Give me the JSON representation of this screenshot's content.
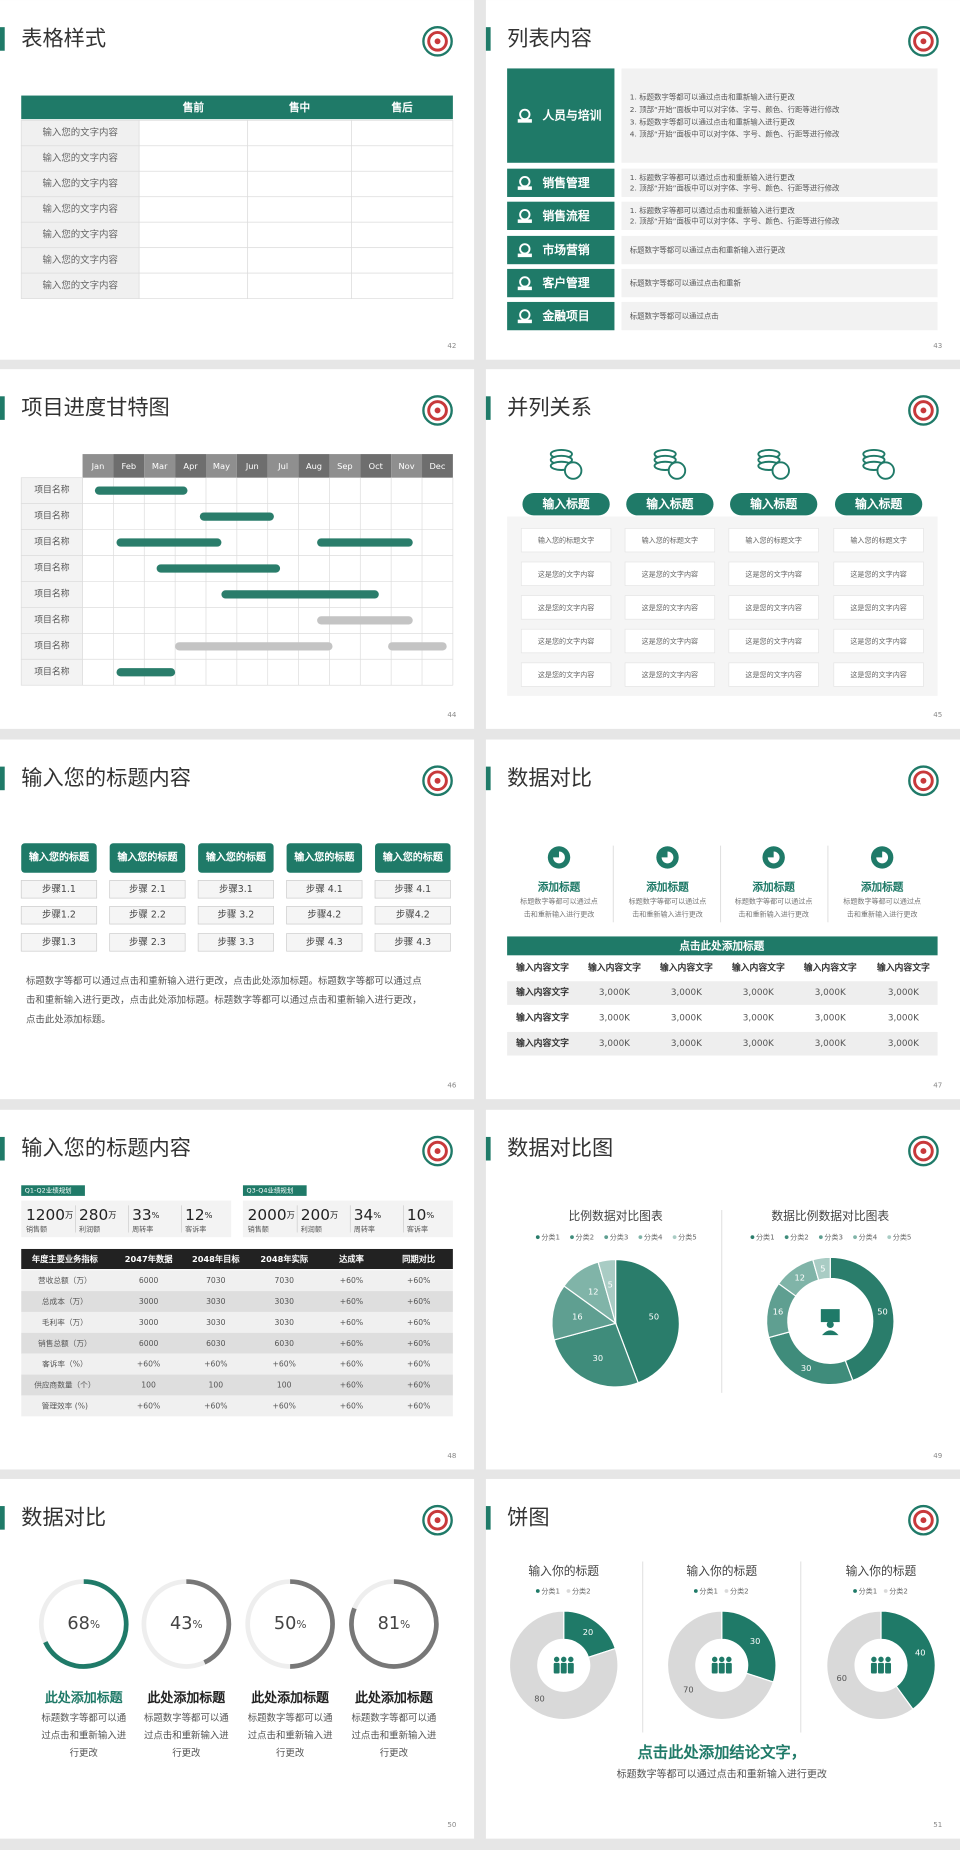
{
  "slides": [
    {
      "page": 42,
      "title": "表格样式",
      "table": {
        "headers": [
          "售前",
          "售中",
          "售后"
        ],
        "rows": [
          "输入您的文字内容",
          "输入您的文字内容",
          "输入您的文字内容",
          "输入您的文字内容",
          "输入您的文字内容",
          "输入您的文字内容",
          "输入您的文字内容"
        ]
      }
    },
    {
      "page": 43,
      "title": "列表内容",
      "items": [
        {
          "label": "人员与培训",
          "lines": [
            "1. 标题数字等都可以通过点击和重新输入进行更改",
            "2. 顶部“开始”面板中可以对字体、字号、颜色、行距等进行修改",
            "3. 标题数字等都可以通过点击和重新输入进行更改",
            "4. 顶部“开始”面板中可以对字体、字号、颜色、行距等进行修改"
          ]
        },
        {
          "label": "销售管理",
          "lines": [
            "1. 标题数字等都可以通过点击和重新输入进行更改",
            "2. 顶部“开始”面板中可以对字体、字号、颜色、行距等进行修改"
          ]
        },
        {
          "label": "销售流程",
          "lines": [
            "1. 标题数字等都可以通过点击和重新输入进行更改",
            "2. 顶部“开始”面板中可以对字体、字号、颜色、行距等进行修改"
          ]
        },
        {
          "label": "市场营销",
          "lines": [
            "标题数字等都可以通过点击和重新输入进行更改"
          ]
        },
        {
          "label": "客户管理",
          "lines": [
            "标题数字等都可以通过点击和重新"
          ]
        },
        {
          "label": "金融项目",
          "lines": [
            "标题数字等都可以通过点击"
          ]
        }
      ]
    },
    {
      "page": 44,
      "title": "项目进度甘特图",
      "gantt": {
        "months": [
          "Jan",
          "Feb",
          "Mar",
          "Apr",
          "May",
          "Jun",
          "Jul",
          "Aug",
          "Sep",
          "Oct",
          "Nov",
          "Dec"
        ],
        "xlim": [
          0,
          12
        ],
        "tasks": [
          {
            "label": "项目名称",
            "bars": [
              {
                "start": 0.4,
                "end": 3.4,
                "color": "#2a7d6b"
              }
            ]
          },
          {
            "label": "项目名称",
            "bars": [
              {
                "start": 3.8,
                "end": 6.2,
                "color": "#2a7d6b"
              }
            ]
          },
          {
            "label": "项目名称",
            "bars": [
              {
                "start": 1.1,
                "end": 4.5,
                "color": "#2a7d6b"
              },
              {
                "start": 7.6,
                "end": 10.7,
                "color": "#2a7d6b"
              }
            ]
          },
          {
            "label": "项目名称",
            "bars": [
              {
                "start": 2.4,
                "end": 6.4,
                "color": "#2a7d6b"
              }
            ]
          },
          {
            "label": "项目名称",
            "bars": [
              {
                "start": 4.5,
                "end": 9.6,
                "color": "#2a7d6b"
              }
            ]
          },
          {
            "label": "项目名称",
            "bars": [
              {
                "start": 7.6,
                "end": 10.7,
                "color": "#c4c4c4"
              }
            ]
          },
          {
            "label": "项目名称",
            "bars": [
              {
                "start": 3.0,
                "end": 8.1,
                "color": "#c4c4c4"
              },
              {
                "start": 9.9,
                "end": 11.8,
                "color": "#c4c4c4"
              }
            ]
          },
          {
            "label": "项目名称",
            "bars": [
              {
                "start": 1.1,
                "end": 3.0,
                "color": "#2a7d6b"
              }
            ]
          }
        ]
      }
    },
    {
      "page": 45,
      "title": "并列关系",
      "columns": [
        {
          "title": "输入标题",
          "items": [
            "输入您的标题文字",
            "这是您的文字内容",
            "这是您的文字内容",
            "这是您的文字内容",
            "这是您的文字内容"
          ]
        },
        {
          "title": "输入标题",
          "items": [
            "输入您的标题文字",
            "这是您的文字内容",
            "这是您的文字内容",
            "这是您的文字内容",
            "这是您的文字内容"
          ]
        },
        {
          "title": "输入标题",
          "items": [
            "输入您的标题文字",
            "这是您的文字内容",
            "这是您的文字内容",
            "这是您的文字内容",
            "这是您的文字内容"
          ]
        },
        {
          "title": "输入标题",
          "items": [
            "输入您的标题文字",
            "这是您的文字内容",
            "这是您的文字内容",
            "这是您的文字内容",
            "这是您的文字内容"
          ]
        }
      ]
    },
    {
      "page": 46,
      "title": "输入您的标题内容",
      "columns": [
        {
          "title": "输入您的标题",
          "steps": [
            "步骤1.1",
            "步骤1.2",
            "步骤1.3"
          ]
        },
        {
          "title": "输入您的标题",
          "steps": [
            "步骤 2.1",
            "步骤 2.2",
            "步骤 2.3"
          ]
        },
        {
          "title": "输入您的标题",
          "steps": [
            "步骤3.1",
            "步骤 3.2",
            "步骤 3.3"
          ]
        },
        {
          "title": "输入您的标题",
          "steps": [
            "步骤 4.1",
            "步骤4.2",
            "步骤 4.3"
          ]
        },
        {
          "title": "输入您的标题",
          "steps": [
            "步骤 4.1",
            "步骤4.2",
            "步骤 4.3"
          ]
        }
      ],
      "paragraph": [
        "标题数字等都可以通过点击和重新输入进行更改，点击此处添加标题。标题数字等都可以通过点",
        "击和重新输入进行更改，点击此处添加标题。标题数字等都可以通过点击和重新输入进行更改，",
        "点击此处添加标题。"
      ]
    },
    {
      "page": 47,
      "title": "数据对比",
      "features": [
        {
          "title": "添加标题",
          "lines": [
            "标题数字等都可以通过点",
            "击和重新输入进行更改"
          ]
        },
        {
          "title": "添加标题",
          "lines": [
            "标题数字等都可以通过点",
            "击和重新输入进行更改"
          ]
        },
        {
          "title": "添加标题",
          "lines": [
            "标题数字等都可以通过点",
            "击和重新输入进行更改"
          ]
        },
        {
          "title": "添加标题",
          "lines": [
            "标题数字等都可以通过点",
            "击和重新输入进行更改"
          ]
        }
      ],
      "banner": "点击此处添加标题",
      "table": {
        "headers": [
          "输入内容文字",
          "输入内容文字",
          "输入内容文字",
          "输入内容文字",
          "输入内容文字",
          "输入内容文字"
        ],
        "rows": [
          [
            "输入内容文字",
            "3,000K",
            "3,000K",
            "3,000K",
            "3,000K",
            "3,000K"
          ],
          [
            "输入内容文字",
            "3,000K",
            "3,000K",
            "3,000K",
            "3,000K",
            "3,000K"
          ],
          [
            "输入内容文字",
            "3,000K",
            "3,000K",
            "3,000K",
            "3,000K",
            "3,000K"
          ]
        ]
      }
    },
    {
      "page": 48,
      "title": "输入您的标题内容",
      "groups": [
        {
          "tab": "Q1-Q2业绩规划",
          "stats": [
            {
              "value": 1200,
              "unit": "万",
              "label": "销售额"
            },
            {
              "value": 280,
              "unit": "万",
              "label": "利润额"
            },
            {
              "value": 33,
              "unit": "%",
              "label": "周转率"
            },
            {
              "value": 12,
              "unit": "%",
              "label": "客诉率"
            }
          ]
        },
        {
          "tab": "Q3-Q4业绩规划",
          "stats": [
            {
              "value": 2000,
              "unit": "万",
              "label": "销售额"
            },
            {
              "value": 200,
              "unit": "万",
              "label": "利润额"
            },
            {
              "value": 34,
              "unit": "%",
              "label": "周转率"
            },
            {
              "value": 10,
              "unit": "%",
              "label": "客诉率"
            }
          ]
        }
      ],
      "table": {
        "headers": [
          "年度主要业务指标",
          "2047年数据",
          "2048年目标",
          "2048年实际",
          "达成率",
          "同期对比"
        ],
        "rows": [
          [
            "营收总额（万）",
            6000,
            7030,
            7030,
            "+60%",
            "+60%"
          ],
          [
            "总成本（万）",
            3000,
            3030,
            3030,
            "+60%",
            "+60%"
          ],
          [
            "毛利率（万）",
            3000,
            3030,
            3030,
            "+60%",
            "+60%"
          ],
          [
            "销售总额（万）",
            6000,
            6030,
            6030,
            "+60%",
            "+60%"
          ],
          [
            "客诉率（%）",
            "+60%",
            "+60%",
            "+60%",
            "+60%",
            "+60%"
          ],
          [
            "供应商数量（个）",
            100,
            100,
            100,
            "+60%",
            "+60%"
          ],
          [
            "管理效率 (%)",
            "+60%",
            "+60%",
            "+60%",
            "+60%",
            "+60%"
          ]
        ]
      }
    },
    {
      "page": 49,
      "title": "数据对比图",
      "charts": [
        {
          "type": "pie",
          "title": "比例数据对比图表",
          "categories": [
            "分类1",
            "分类2",
            "分类3",
            "分类4",
            "分类5"
          ],
          "values": [
            50,
            30,
            16,
            12,
            5
          ],
          "colors": [
            "#2a7d6b",
            "#3f8c7b",
            "#5f9f91",
            "#80b4a8",
            "#a9ccc4"
          ]
        },
        {
          "type": "donut",
          "title": "数据比例数据对比图表",
          "categories": [
            "分类1",
            "分类2",
            "分类3",
            "分类4",
            "分类5"
          ],
          "values": [
            50,
            30,
            16,
            12,
            5
          ],
          "colors": [
            "#2a7d6b",
            "#3f8c7b",
            "#5f9f91",
            "#80b4a8",
            "#a9ccc4"
          ]
        }
      ]
    },
    {
      "page": 50,
      "title": "数据对比",
      "gauges": [
        {
          "value": 68,
          "unit": "%",
          "color": "#1f7a68",
          "title": "此处添加标题",
          "lines": [
            "标题数字等都可以通",
            "过点击和重新输入进",
            "行更改"
          ]
        },
        {
          "value": 43,
          "unit": "%",
          "color": "#777777",
          "title": "此处添加标题",
          "lines": [
            "标题数字等都可以通",
            "过点击和重新输入进",
            "行更改"
          ]
        },
        {
          "value": 50,
          "unit": "%",
          "color": "#777777",
          "title": "此处添加标题",
          "lines": [
            "标题数字等都可以通",
            "过点击和重新输入进",
            "行更改"
          ]
        },
        {
          "value": 81,
          "unit": "%",
          "color": "#777777",
          "title": "此处添加标题",
          "lines": [
            "标题数字等都可以通",
            "过点击和重新输入进",
            "行更改"
          ]
        }
      ]
    },
    {
      "page": 51,
      "title": "饼图",
      "charts": [
        {
          "type": "donut",
          "title": "输入你的标题",
          "categories": [
            "分类1",
            "分类2"
          ],
          "values": [
            20,
            80
          ],
          "colors": [
            "#1f7a68",
            "#d9d9d9"
          ]
        },
        {
          "type": "donut",
          "title": "输入你的标题",
          "categories": [
            "分类1",
            "分类2"
          ],
          "values": [
            30,
            70
          ],
          "colors": [
            "#1f7a68",
            "#d9d9d9"
          ]
        },
        {
          "type": "donut",
          "title": "输入你的标题",
          "categories": [
            "分类1",
            "分类2"
          ],
          "values": [
            40,
            60
          ],
          "colors": [
            "#1f7a68",
            "#d9d9d9"
          ]
        }
      ],
      "conclusion": "点击此处添加结论文字，",
      "note": "标题数字等都可以通过点击和重新输入进行更改"
    }
  ]
}
